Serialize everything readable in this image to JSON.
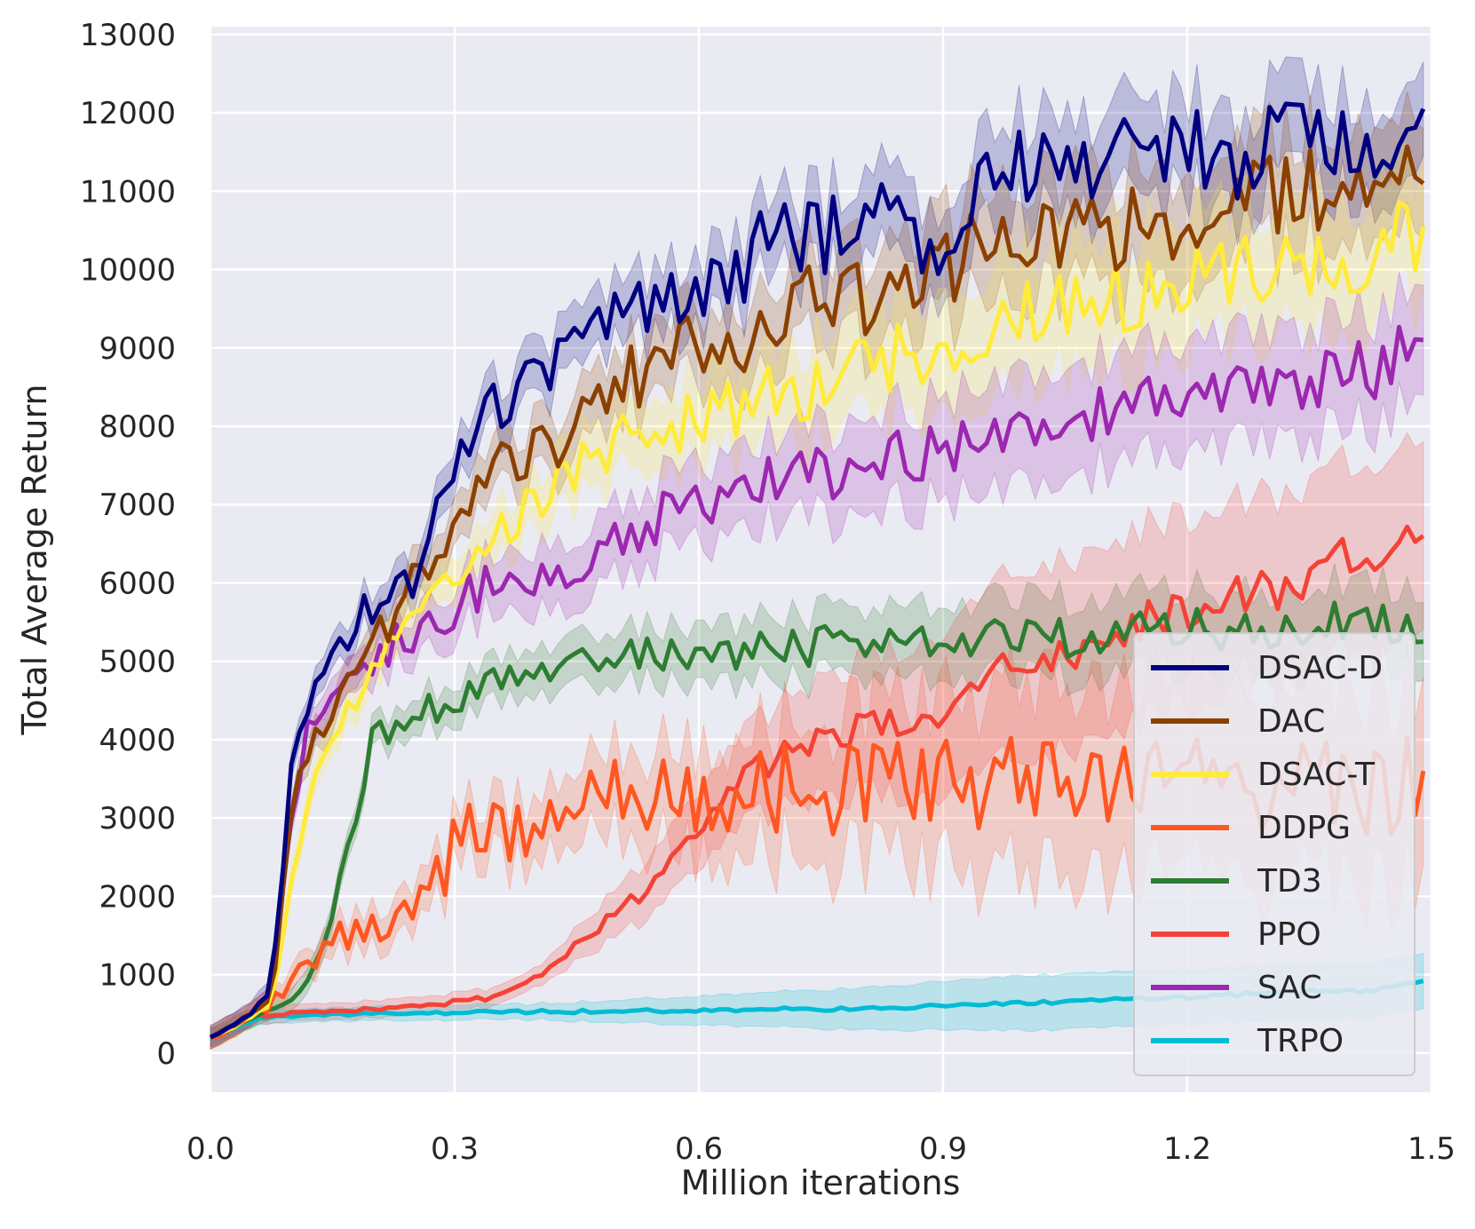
{
  "chart_data": {
    "type": "line",
    "title": "",
    "xlabel": "Million iterations",
    "ylabel": "Total Average Return",
    "xlim": [
      0.0,
      1.5
    ],
    "ylim": [
      -500,
      13100
    ],
    "xticks": [
      0.0,
      0.3,
      0.6,
      0.9,
      1.2,
      1.5
    ],
    "xtick_labels": [
      "0.0",
      "0.3",
      "0.6",
      "0.9",
      "1.2",
      "1.5"
    ],
    "yticks": [
      0,
      1000,
      2000,
      3000,
      4000,
      5000,
      6000,
      7000,
      8000,
      9000,
      10000,
      11000,
      12000,
      13000
    ],
    "ytick_labels": [
      "0",
      "1000",
      "2000",
      "3000",
      "4000",
      "5000",
      "6000",
      "7000",
      "8000",
      "9000",
      "10000",
      "11000",
      "12000",
      "13000"
    ],
    "grid": true,
    "background": "#eaeaf2",
    "legend_position": "bottom-right",
    "x": [
      0.0,
      0.05,
      0.075,
      0.1,
      0.125,
      0.15,
      0.2,
      0.25,
      0.3,
      0.35,
      0.4,
      0.45,
      0.5,
      0.55,
      0.6,
      0.65,
      0.7,
      0.75,
      0.8,
      0.85,
      0.9,
      0.95,
      1.0,
      1.05,
      1.1,
      1.15,
      1.2,
      1.25,
      1.3,
      1.35,
      1.4,
      1.45,
      1.49
    ],
    "series": [
      {
        "name": "DSAC-D",
        "color": "#000080",
        "values": [
          200,
          500,
          800,
          3700,
          4800,
          4900,
          5800,
          6000,
          7600,
          8300,
          8700,
          8900,
          9300,
          9500,
          9800,
          10000,
          10500,
          10400,
          10700,
          10700,
          10000,
          11200,
          11300,
          11400,
          11300,
          11500,
          11600,
          11200,
          11500,
          11800,
          11700,
          11600,
          12050
        ],
        "band": [
          150,
          350,
          600
        ]
      },
      {
        "name": "DAC",
        "color": "#8b4000",
        "values": [
          200,
          480,
          700,
          3000,
          4200,
          4300,
          5200,
          6000,
          6800,
          7400,
          7600,
          8000,
          8500,
          8800,
          9000,
          9100,
          9400,
          9700,
          9600,
          9800,
          10000,
          10300,
          10200,
          10500,
          10500,
          10600,
          10700,
          10800,
          10900,
          11000,
          11100,
          11200,
          11100
        ],
        "band": [
          150,
          350,
          700
        ]
      },
      {
        "name": "DSAC-T",
        "color": "#ffeb3b",
        "values": [
          200,
          450,
          650,
          2200,
          3500,
          4000,
          4800,
          5600,
          6000,
          6500,
          7000,
          7400,
          7800,
          7900,
          8100,
          8200,
          8400,
          8500,
          8700,
          8900,
          9000,
          9200,
          9400,
          9500,
          9600,
          9700,
          9800,
          9900,
          10000,
          10100,
          10200,
          10300,
          10550
        ],
        "band": [
          150,
          350,
          800
        ]
      },
      {
        "name": "DDPG",
        "color": "#ff5722",
        "values": [
          200,
          450,
          600,
          900,
          1200,
          1400,
          1600,
          1800,
          2600,
          2900,
          3000,
          3200,
          3300,
          3200,
          3300,
          3300,
          3400,
          3300,
          3400,
          3400,
          3500,
          3500,
          3400,
          3500,
          3400,
          3500,
          3500,
          3400,
          3500,
          3500,
          3400,
          3300,
          3600
        ],
        "band": [
          120,
          400,
          1200
        ]
      },
      {
        "name": "TD3",
        "color": "#2e7d32",
        "values": [
          200,
          450,
          550,
          650,
          1000,
          1800,
          4000,
          4300,
          4500,
          4800,
          5000,
          5000,
          5000,
          5100,
          5100,
          5100,
          5200,
          5200,
          5200,
          5200,
          5200,
          5300,
          5300,
          5300,
          5300,
          5400,
          5400,
          5400,
          5400,
          5500,
          5500,
          5450,
          5250
        ],
        "band": [
          120,
          300,
          500
        ]
      },
      {
        "name": "PPO",
        "color": "#f44336",
        "values": [
          200,
          450,
          480,
          500,
          520,
          540,
          560,
          580,
          650,
          720,
          950,
          1400,
          1800,
          2200,
          2900,
          3500,
          3800,
          4000,
          4150,
          4250,
          4400,
          4800,
          5000,
          5100,
          5300,
          5500,
          5700,
          5800,
          5900,
          6100,
          6300,
          6400,
          6600
        ],
        "band": [
          100,
          120,
          1200
        ]
      },
      {
        "name": "SAC",
        "color": "#9c27b0",
        "values": [
          200,
          500,
          700,
          3200,
          4300,
          4500,
          5100,
          5300,
          5700,
          6000,
          6100,
          6300,
          6500,
          6800,
          7000,
          7100,
          7300,
          7400,
          7500,
          7600,
          7700,
          7900,
          8000,
          8100,
          8200,
          8300,
          8400,
          8400,
          8500,
          8600,
          8700,
          8800,
          9100
        ],
        "band": [
          150,
          400,
          700
        ]
      },
      {
        "name": "TRPO",
        "color": "#00bcd4",
        "values": [
          200,
          420,
          450,
          470,
          480,
          490,
          500,
          510,
          520,
          520,
          530,
          530,
          540,
          540,
          550,
          550,
          560,
          560,
          570,
          580,
          600,
          620,
          640,
          660,
          680,
          700,
          720,
          740,
          760,
          780,
          800,
          820,
          920
        ],
        "band": [
          80,
          100,
          350
        ]
      }
    ]
  }
}
